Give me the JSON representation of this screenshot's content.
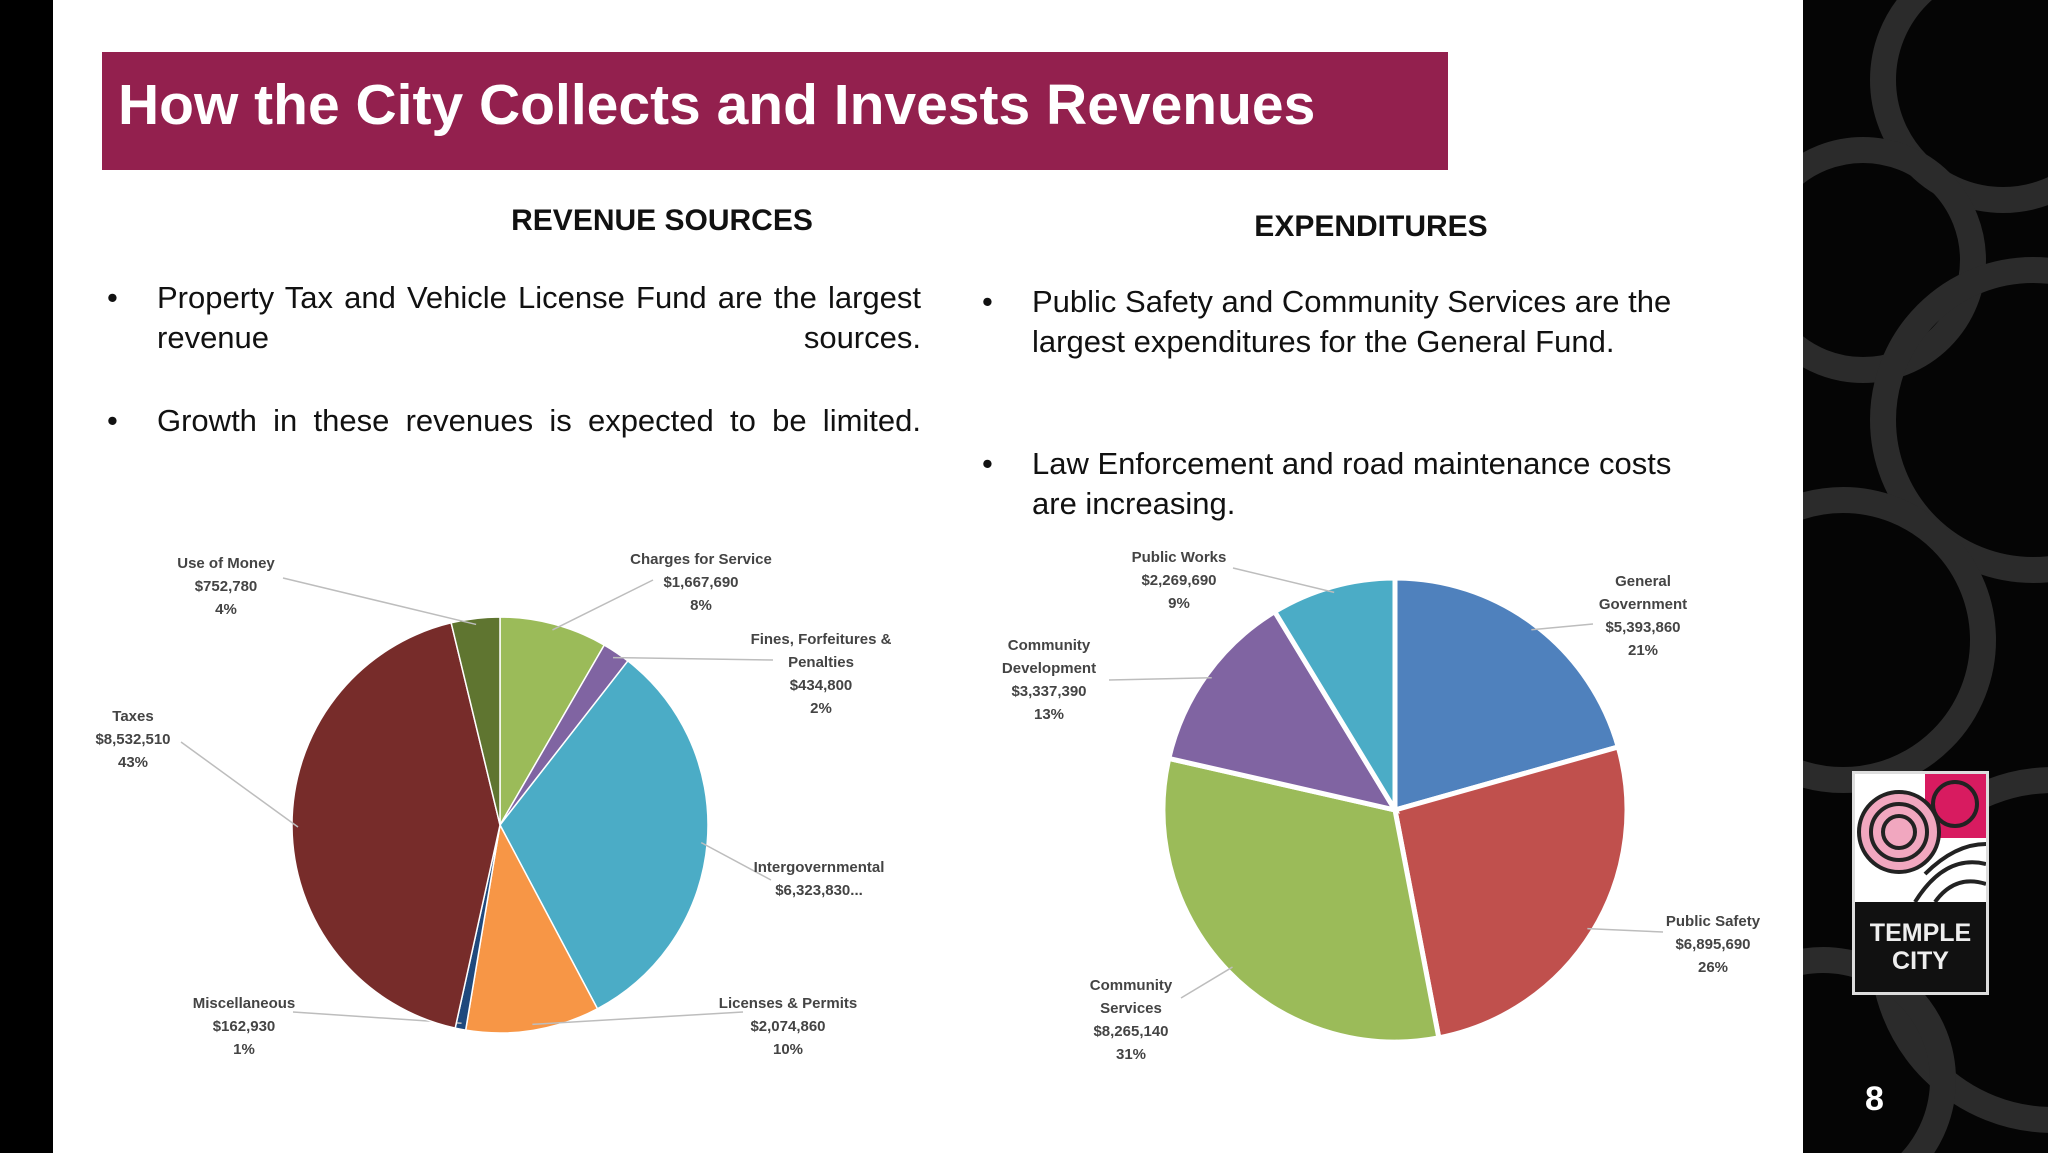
{
  "title": "How the City Collects and Invests Revenues",
  "colors": {
    "banner": "#93204e",
    "side_panel": "#050505"
  },
  "revenue": {
    "heading": "REVENUE SOURCES",
    "bullets": [
      "Property Tax and Vehicle License Fund are the largest revenue sources.",
      "Growth in these revenues is expected to be limited."
    ]
  },
  "expenditures": {
    "heading": "EXPENDITURES",
    "bullets": [
      "Public Safety and Community Services are the largest expenditures for the General Fund.",
      "Law Enforcement and road maintenance costs are increasing."
    ]
  },
  "logo": {
    "text_line1": "TEMPLE",
    "text_line2": "CITY"
  },
  "page_number": "8",
  "chart_data": [
    {
      "type": "pie",
      "title": "REVENUE SOURCES",
      "start": "top, clockwise",
      "slices": [
        {
          "label": [
            "Charges for Service"
          ],
          "value_text": "$1,667,690",
          "pct": "8%",
          "value": 1667690,
          "color": "#9bbb59"
        },
        {
          "label": [
            "Fines, Forfeitures &",
            "Penalties"
          ],
          "value_text": "$434,800",
          "pct": "2%",
          "value": 434800,
          "color": "#8064a2"
        },
        {
          "label": [
            "Intergovernmental"
          ],
          "value_text": "$6,323,830...",
          "pct": "",
          "value": 6323830,
          "color": "#4bacc6"
        },
        {
          "label": [
            "Licenses & Permits"
          ],
          "value_text": "$2,074,860",
          "pct": "10%",
          "value": 2074860,
          "color": "#f79646"
        },
        {
          "label": [
            "Miscellaneous"
          ],
          "value_text": "$162,930",
          "pct": "1%",
          "value": 162930,
          "color": "#1f497d"
        },
        {
          "label": [
            "Taxes"
          ],
          "value_text": "$8,532,510",
          "pct": "43%",
          "value": 8532510,
          "color": "#772c2a"
        },
        {
          "label": [
            "Use of Money"
          ],
          "value_text": "$752,780",
          "pct": "4%",
          "value": 752780,
          "color": "#5f7530"
        }
      ]
    },
    {
      "type": "pie",
      "title": "EXPENDITURES",
      "start": "top, clockwise",
      "slices": [
        {
          "label": [
            "General",
            "Government"
          ],
          "value_text": "$5,393,860",
          "pct": "21%",
          "value": 5393860,
          "color": "#4f81bd"
        },
        {
          "label": [
            "Public Safety"
          ],
          "value_text": "$6,895,690",
          "pct": "26%",
          "value": 6895690,
          "color": "#c0504d"
        },
        {
          "label": [
            "Community",
            "Services"
          ],
          "value_text": "$8,265,140",
          "pct": "31%",
          "value": 8265140,
          "color": "#9bbb59"
        },
        {
          "label": [
            "Community",
            "Development"
          ],
          "value_text": "$3,337,390",
          "pct": "13%",
          "value": 3337390,
          "color": "#8064a2"
        },
        {
          "label": [
            "Public Works"
          ],
          "value_text": "$2,269,690",
          "pct": "9%",
          "value": 2269690,
          "color": "#4bacc6"
        }
      ]
    }
  ]
}
